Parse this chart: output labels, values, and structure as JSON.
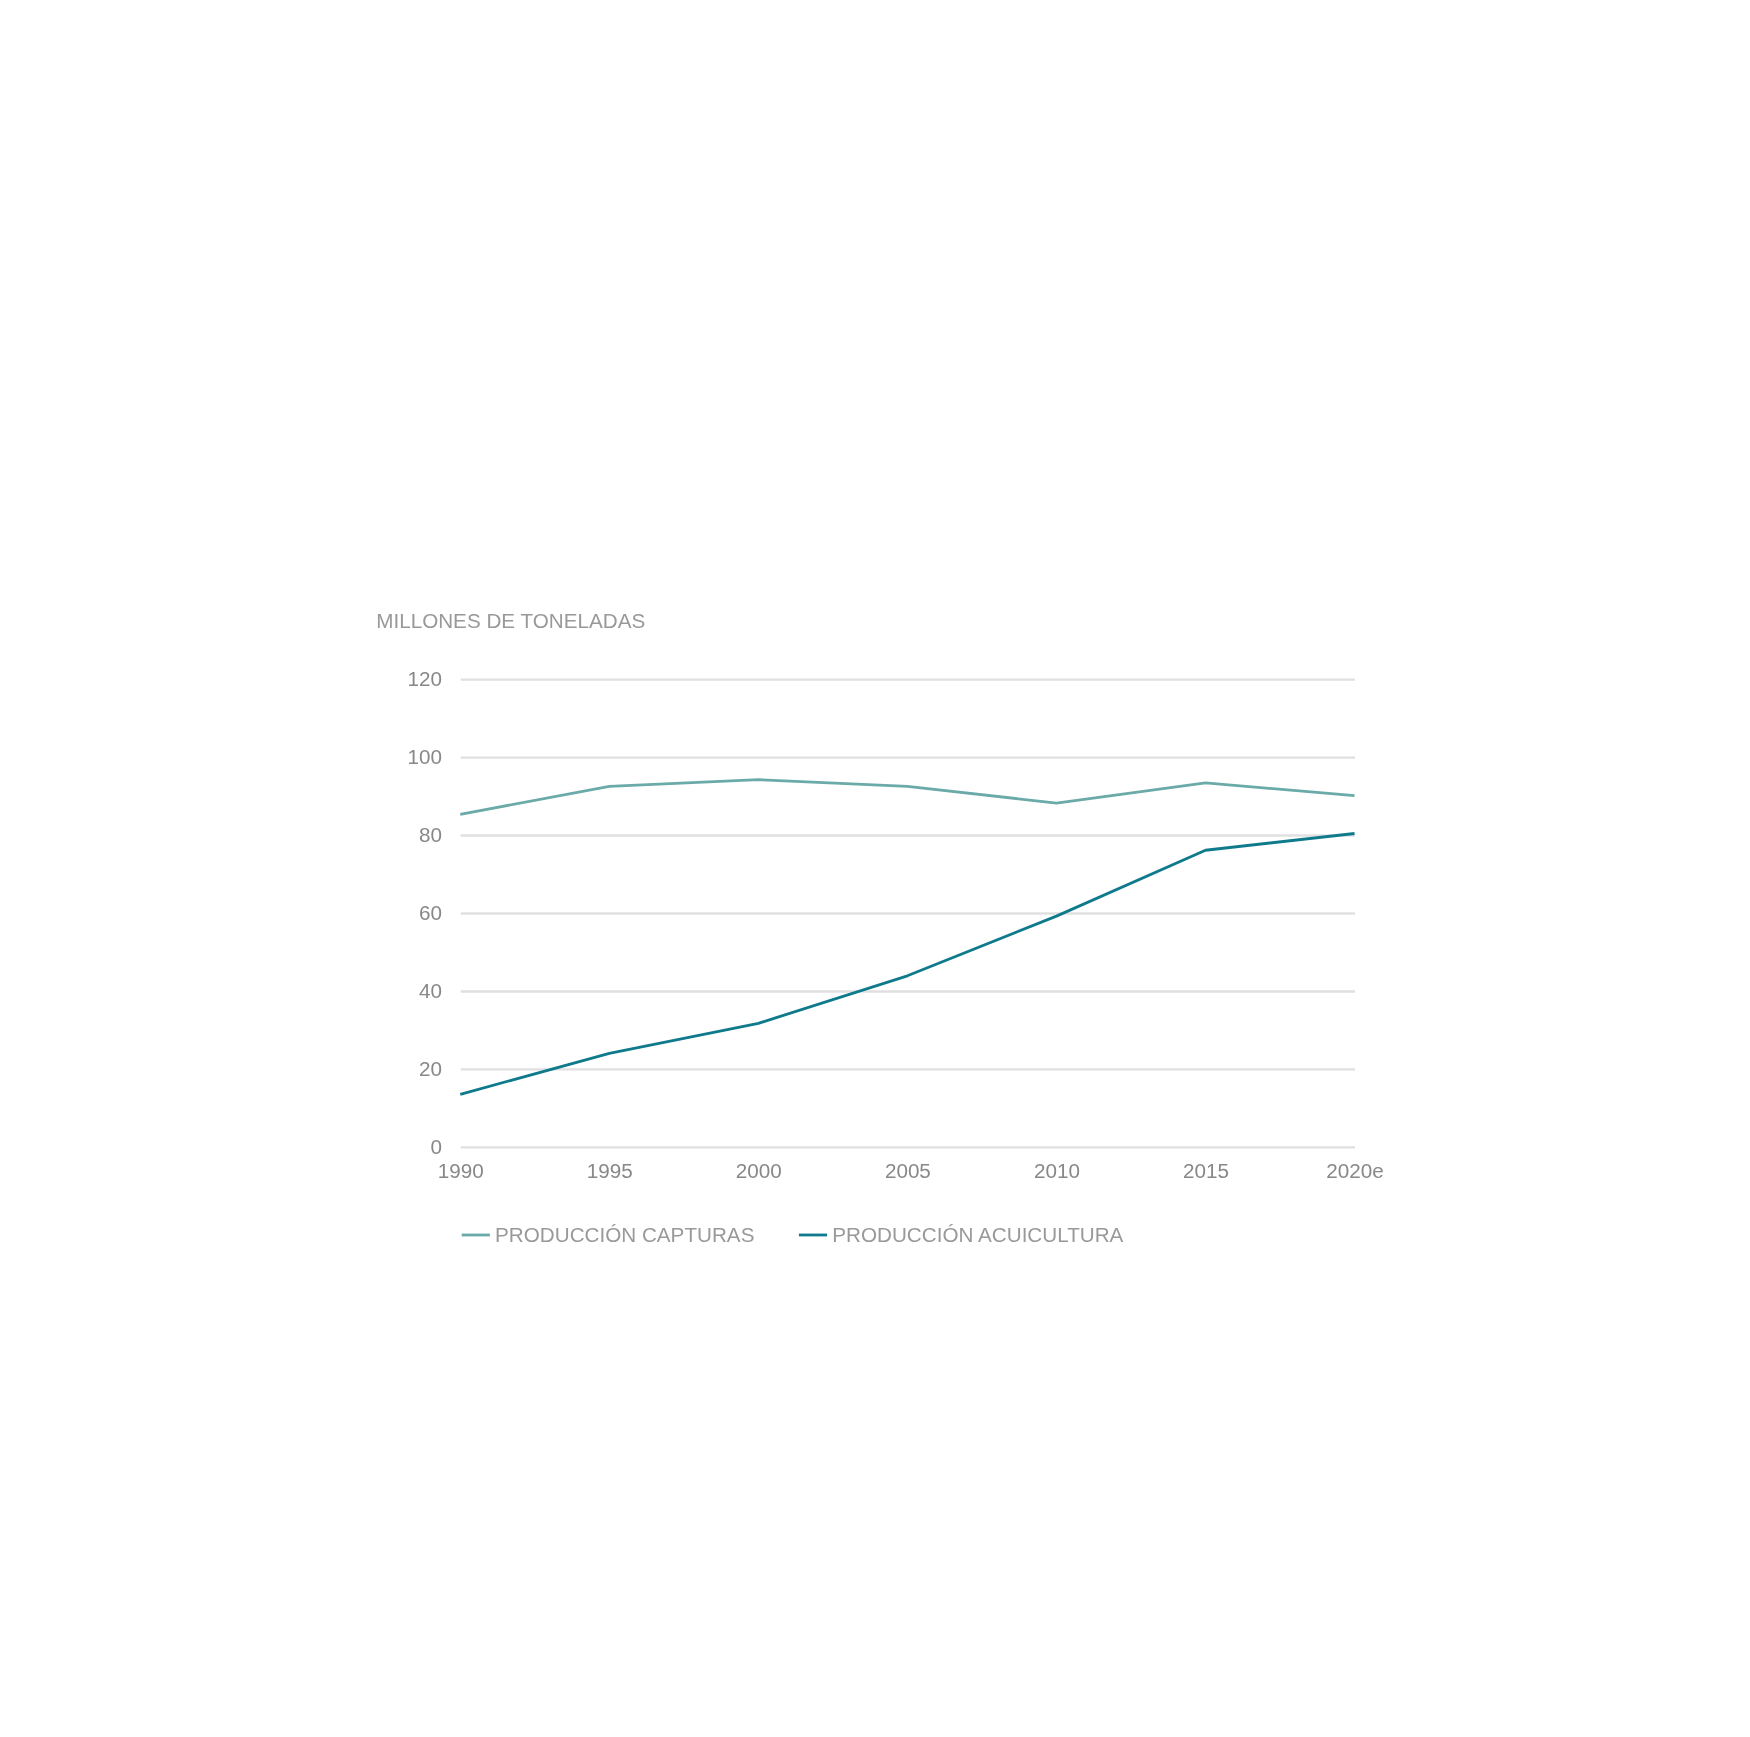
{
  "chart_data": {
    "type": "line",
    "ylabel": "MILLONES DE TONELADAS",
    "categories": [
      "1990",
      "1995",
      "2000",
      "2005",
      "2010",
      "2015",
      "2020e"
    ],
    "series": [
      {
        "name": "PRODUCCIÓN CAPTURAS",
        "color": "#6aaaa8",
        "values": [
          85.3,
          92.5,
          94.2,
          92.5,
          88.2,
          93.4,
          90.1
        ]
      },
      {
        "name": "PRODUCCIÓN ACUICULTURA",
        "color": "#0e7a8c",
        "values": [
          13.5,
          24,
          31.7,
          43.9,
          59.2,
          76.1,
          80.4
        ]
      }
    ],
    "ylim": [
      0,
      120
    ],
    "yticks": [
      0,
      20,
      40,
      60,
      80,
      100,
      120
    ],
    "grid": "y",
    "legend": "bottom",
    "marker": "none",
    "line_style": "solid"
  }
}
